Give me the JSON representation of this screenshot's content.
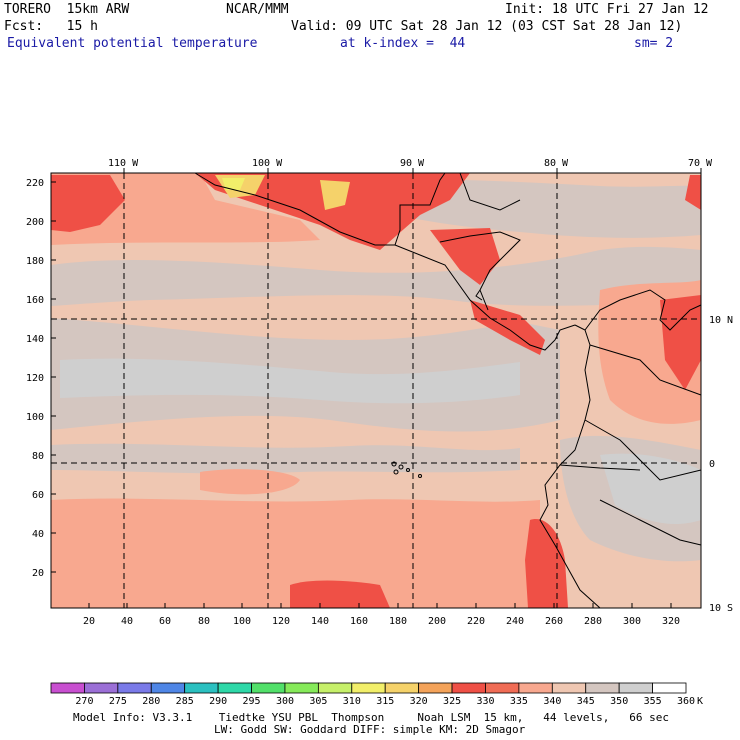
{
  "header": {
    "model": "TORERO  15km ARW",
    "org": "NCAR/MMM",
    "init": "Init: 18 UTC Fri 27 Jan 12",
    "fcst": "Fcst:   15 h",
    "valid": "Valid: 09 UTC Sat 28 Jan 12 (03 CST Sat 28 Jan 12)",
    "field": "Equivalent potential temperature",
    "level": "at k-index =  44",
    "smooth": "sm= 2"
  },
  "map": {
    "top_lon_labels": [
      "110 W",
      "100 W",
      "90 W",
      "80 W",
      "70 W"
    ],
    "right_lat_labels": [
      "10 N",
      "0",
      "10 S"
    ],
    "y_ticks": [
      "220",
      "200",
      "180",
      "160",
      "140",
      "120",
      "100",
      "80",
      "60",
      "40",
      "20"
    ],
    "x_ticks": [
      "20",
      "40",
      "60",
      "80",
      "100",
      "120",
      "140",
      "160",
      "180",
      "200",
      "220",
      "240",
      "260",
      "280",
      "300",
      "320"
    ]
  },
  "colorbar": {
    "unit": "K",
    "labels": [
      "270",
      "275",
      "280",
      "285",
      "290",
      "295",
      "300",
      "305",
      "310",
      "315",
      "320",
      "325",
      "330",
      "335",
      "340",
      "345",
      "350",
      "355",
      "360"
    ],
    "colors": [
      "#c84fd0",
      "#9b6fd6",
      "#7a7ae8",
      "#4f86e6",
      "#2bc0c0",
      "#2ed8a8",
      "#52e06a",
      "#86ea5a",
      "#c6f06a",
      "#f2ef6a",
      "#f5d26a",
      "#f4a35a",
      "#ef5046",
      "#f06c55",
      "#f8a88f",
      "#efc7b2",
      "#d4c6c0",
      "#cfcfcf",
      "#ffffff"
    ]
  },
  "footer": {
    "line1": "Model Info: V3.3.1    Tiedtke YSU PBL  Thompson     Noah LSM  15 km,   44 levels,   66 sec",
    "line2": "LW: Godd SW: Goddard DIFF: simple KM: 2D Smagor"
  }
}
